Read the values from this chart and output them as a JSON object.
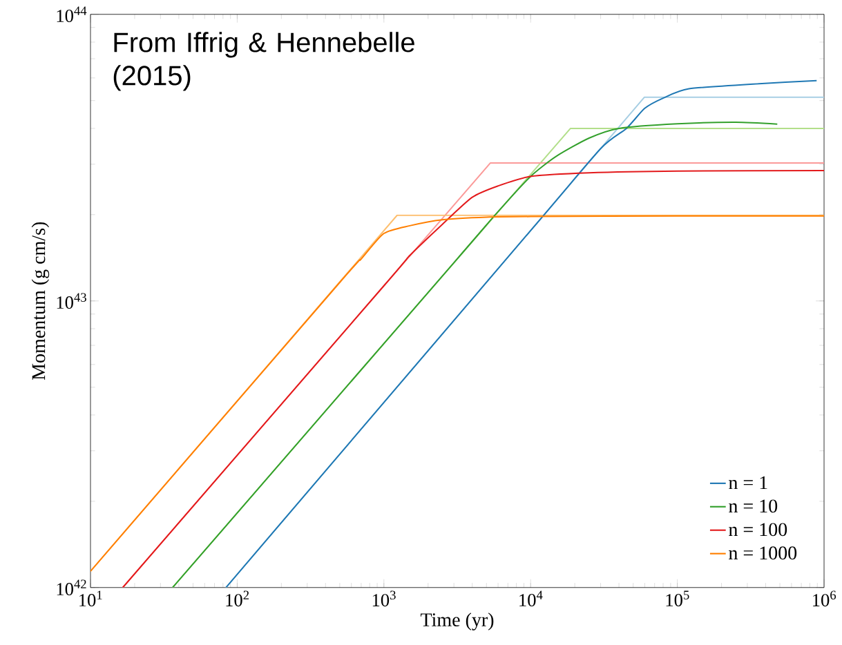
{
  "chart_data": {
    "type": "line",
    "xlabel": "Time (yr)",
    "ylabel": "Momentum (g cm/s)",
    "log": "xy",
    "legend": "bottom right",
    "xlim": [
      10,
      1000000
    ],
    "ylim": [
      1e+42,
      1e+44
    ],
    "xticks": [
      {
        "value": 10,
        "label": "10$^{1}$"
      },
      {
        "value": 100,
        "label": "10$^{2}$"
      },
      {
        "value": 1000,
        "label": "10$^{3}$"
      },
      {
        "value": 10000,
        "label": "10$^{4}$"
      },
      {
        "value": 100000,
        "label": "10$^{5}$"
      },
      {
        "value": 1000000,
        "label": "10$^{6}$"
      }
    ],
    "yticks": [
      {
        "value": 1e+42,
        "label": "10$^{42}$"
      },
      {
        "value": 1e+43,
        "label": "10$^{43}$"
      },
      {
        "value": 1e+44,
        "label": "10$^{44}$"
      }
    ],
    "annotations": [
      "From Iffrig & Hennebelle (2015)"
    ],
    "series": [
      {
        "name": "n = 1",
        "color": "#1f78b4",
        "x": [
          83.8,
          10000,
          30000,
          45000,
          60000,
          80000,
          120000,
          360000,
          890000
        ],
        "values": [
          1e+42,
          1.76e+43,
          3.4e+43,
          4e+43,
          4.7e+43,
          5.1e+43,
          5.5e+43,
          5.73e+43,
          5.87e+43
        ]
      },
      {
        "name": "n = 10",
        "color": "#33a02c",
        "x": [
          36.3,
          3000,
          6000,
          10000,
          15000,
          25000,
          40000,
          100000,
          250000,
          480000
        ],
        "values": [
          1e+42,
          1.36e+43,
          2.05e+43,
          2.72e+43,
          3.2e+43,
          3.7e+43,
          4e+43,
          4.15e+43,
          4.2e+43,
          4.14e+43
        ]
      },
      {
        "name": "n = 100",
        "color": "#e31a1c",
        "x": [
          16.6,
          1000,
          1500,
          2500,
          4000,
          6000,
          10000,
          25000,
          100000,
          1000000
        ],
        "values": [
          1e+42,
          1.13e+43,
          1.44e+43,
          1.85e+43,
          2.3e+43,
          2.52e+43,
          2.72e+43,
          2.8e+43,
          2.84e+43,
          2.85e+43
        ]
      },
      {
        "name": "n = 1000",
        "color": "#ff7f00",
        "x": [
          10,
          500,
          700,
          1000,
          1500,
          2500,
          5000,
          10000,
          100000,
          1000000
        ],
        "values": [
          1.14e+42,
          1.16e+43,
          1.4e+43,
          1.72e+43,
          1.83e+43,
          1.92e+43,
          1.96e+43,
          1.97e+43,
          1.98e+43,
          1.98e+43
        ]
      },
      {
        "color": "#a6cee3",
        "x": [
          83.8,
          59700,
          1000000
        ],
        "values": [
          1e+42,
          5.14e+43,
          5.14e+43
        ]
      },
      {
        "color": "#b2df8a",
        "x": [
          36.3,
          18700,
          1000000
        ],
        "values": [
          1e+42,
          4e+43,
          4e+43
        ]
      },
      {
        "color": "#fb9a99",
        "x": [
          16.6,
          5320,
          1000000
        ],
        "values": [
          1e+42,
          3.03e+43,
          3.03e+43
        ]
      },
      {
        "color": "#fdbf6f",
        "x": [
          10,
          1230,
          1000000
        ],
        "values": [
          1.14e+42,
          1.99e+43,
          1.99e+43
        ]
      }
    ]
  }
}
